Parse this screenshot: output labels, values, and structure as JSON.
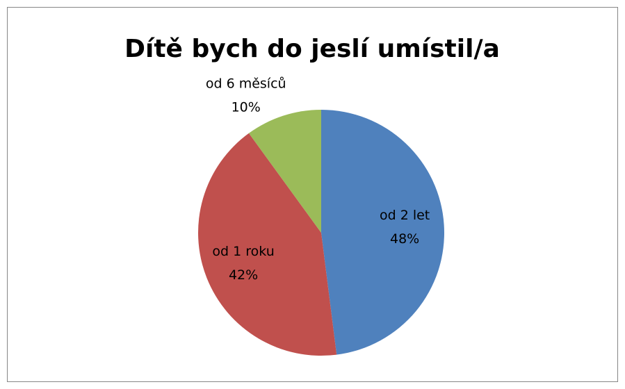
{
  "chart_data": {
    "type": "pie",
    "title": "Dítě bych do jeslí umístil/a",
    "categories": [
      "od 2 let",
      "od 1 roku",
      "od 6 měsíců"
    ],
    "values": [
      48,
      42,
      10
    ],
    "value_labels": [
      "48%",
      "42%",
      "10%"
    ],
    "colors": [
      "#4f81bd",
      "#c0504d",
      "#9bbb59"
    ]
  }
}
